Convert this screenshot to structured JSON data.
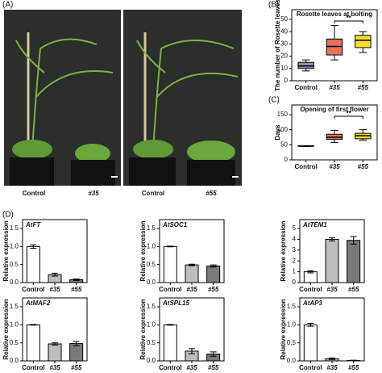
{
  "panel_labels": [
    "(A)",
    "(B)",
    "(C)",
    "(D)"
  ],
  "photo_labels": [
    "Control",
    "#35",
    "Control",
    "#55"
  ],
  "chart_data": [
    {
      "type": "box",
      "title": "Rosette leaves at bolting",
      "ylabel": "The number of Rosette leaves",
      "categories": [
        "Control",
        "#35",
        "#55"
      ],
      "boxes": [
        {
          "min": 8,
          "q1": 10,
          "median": 12,
          "q3": 15,
          "max": 17
        },
        {
          "min": 17,
          "q1": 21,
          "median": 28,
          "q3": 34,
          "max": 45
        },
        {
          "min": 23,
          "q1": 27,
          "median": 33,
          "q3": 37,
          "max": 40
        }
      ],
      "colors": [
        "#8a8fb0",
        "#e8735a",
        "#f2e030"
      ],
      "ylim": [
        0,
        50
      ],
      "yticks": [
        0,
        10,
        20,
        30,
        40,
        50
      ],
      "annotation": "**"
    },
    {
      "type": "box",
      "title": "Opening of first flower",
      "ylabel": "Days",
      "categories": [
        "Control",
        "#35",
        "#55"
      ],
      "boxes": [
        {
          "min": 44,
          "q1": 45,
          "median": 46,
          "q3": 47,
          "max": 47
        },
        {
          "min": 58,
          "q1": 68,
          "median": 75,
          "q3": 85,
          "max": 98
        },
        {
          "min": 65,
          "q1": 70,
          "median": 80,
          "q3": 88,
          "max": 100
        }
      ],
      "colors": [
        "#8a8fb0",
        "#e8735a",
        "#f2e030"
      ],
      "ylim": [
        0,
        150
      ],
      "yticks": [
        0,
        50,
        100,
        150
      ],
      "annotation": "**"
    },
    {
      "type": "bar",
      "title": "AtFT",
      "ylabel": "Relative expression",
      "categories": [
        "Control",
        "#35",
        "#55"
      ],
      "values": [
        1.0,
        0.22,
        0.08
      ],
      "errors": [
        0.05,
        0.04,
        0.02
      ],
      "colors": [
        "#ffffff",
        "#bdbdbd",
        "#7a7a7a"
      ],
      "ylim": [
        0,
        1.5
      ],
      "yticks": [
        {
          "value": 0,
          "label": "0.0"
        },
        0.5,
        {
          "value": 1,
          "label": "1.0"
        },
        1.5
      ]
    },
    {
      "type": "bar",
      "title": "AtSOC1",
      "ylabel": "Relative expression",
      "categories": [
        "Control",
        "#35",
        "#55"
      ],
      "values": [
        1.0,
        0.49,
        0.46
      ],
      "errors": [
        0.01,
        0.02,
        0.03
      ],
      "colors": [
        "#ffffff",
        "#bdbdbd",
        "#7a7a7a"
      ],
      "ylim": [
        0,
        1.5
      ],
      "yticks": [
        {
          "value": 0,
          "label": "0.0"
        },
        0.5,
        {
          "value": 1,
          "label": "1.0"
        },
        1.5
      ]
    },
    {
      "type": "bar",
      "title": "AtTEM1",
      "ylabel": "Relative expression",
      "categories": [
        "Control",
        "#35",
        "#55"
      ],
      "values": [
        1.0,
        4.0,
        3.9
      ],
      "errors": [
        0.1,
        0.15,
        0.35
      ],
      "colors": [
        "#ffffff",
        "#bdbdbd",
        "#7a7a7a"
      ],
      "ylim": [
        0,
        5
      ],
      "yticks": [
        0,
        1,
        2,
        3,
        4,
        5
      ]
    },
    {
      "type": "bar",
      "title": "AtMAF2",
      "ylabel": "Relative expression",
      "categories": [
        "Control",
        "#35",
        "#55"
      ],
      "values": [
        1.0,
        0.47,
        0.48
      ],
      "errors": [
        0.01,
        0.03,
        0.06
      ],
      "colors": [
        "#ffffff",
        "#bdbdbd",
        "#7a7a7a"
      ],
      "ylim": [
        0,
        1.5
      ],
      "yticks": [
        {
          "value": 0,
          "label": "0.0"
        },
        0.5,
        {
          "value": 1,
          "label": "1.0"
        },
        1.5
      ]
    },
    {
      "type": "bar",
      "title": "AtSPL15",
      "ylabel": "Relative expression",
      "categories": [
        "Control",
        "#35",
        "#55"
      ],
      "values": [
        1.0,
        0.27,
        0.19
      ],
      "errors": [
        0.01,
        0.07,
        0.06
      ],
      "colors": [
        "#ffffff",
        "#bdbdbd",
        "#7a7a7a"
      ],
      "ylim": [
        0,
        1.5
      ],
      "yticks": [
        {
          "value": 0,
          "label": "0.0"
        },
        0.5,
        {
          "value": 1,
          "label": "1.0"
        },
        1.5
      ]
    },
    {
      "type": "bar",
      "title": "AtAP3",
      "ylabel": "Relative expression",
      "categories": [
        "Control",
        "#35",
        "#55"
      ],
      "values": [
        1.0,
        0.06,
        0.01
      ],
      "errors": [
        0.04,
        0.02,
        0.01
      ],
      "colors": [
        "#ffffff",
        "#bdbdbd",
        "#7a7a7a"
      ],
      "ylim": [
        0,
        1.5
      ],
      "yticks": [
        {
          "value": 0,
          "label": "0.0"
        },
        0.5,
        {
          "value": 1,
          "label": "1.0"
        },
        1.5
      ]
    }
  ]
}
